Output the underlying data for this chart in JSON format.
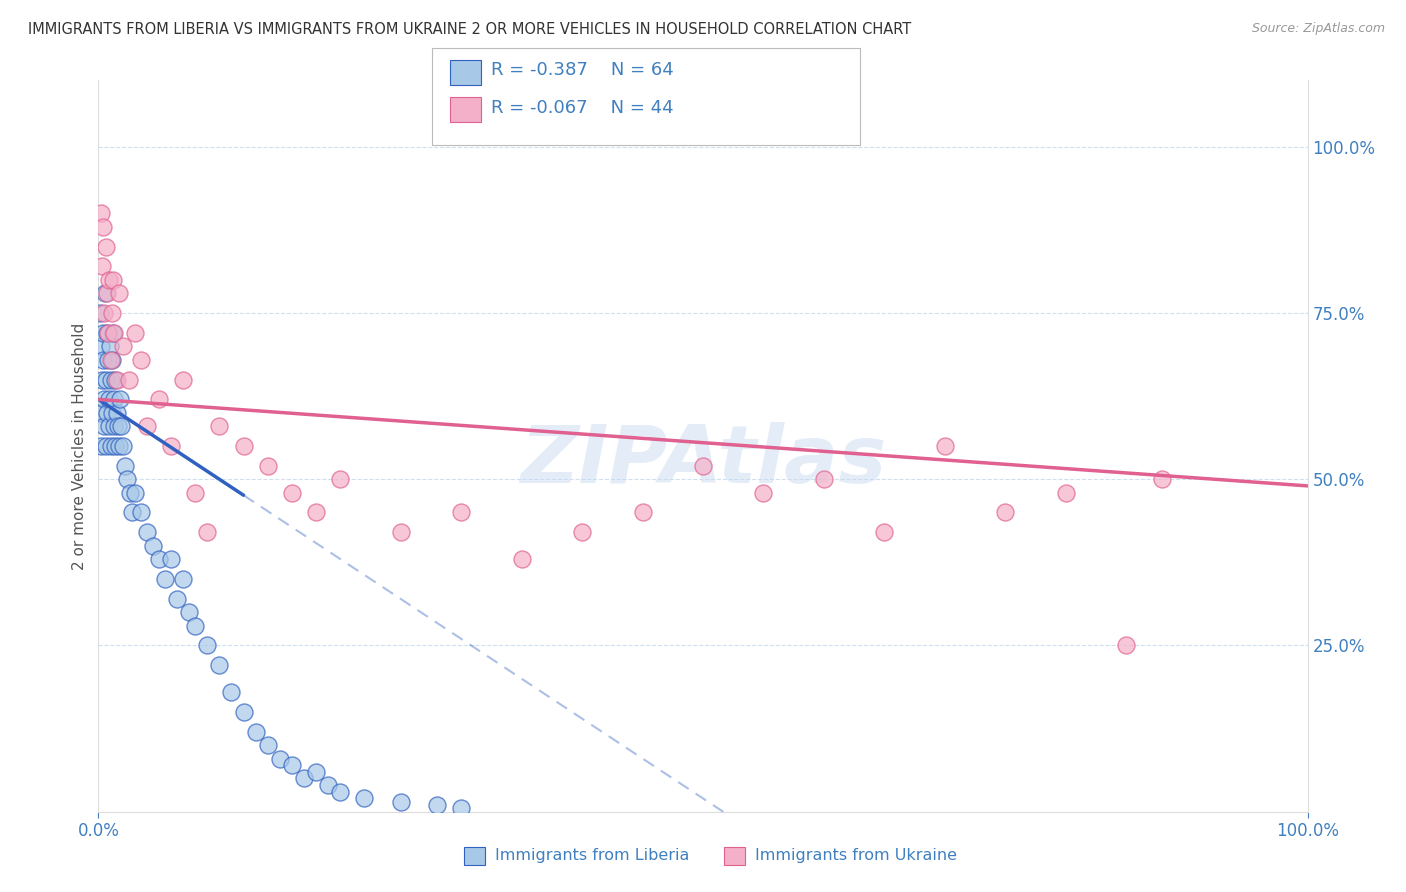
{
  "title": "IMMIGRANTS FROM LIBERIA VS IMMIGRANTS FROM UKRAINE 2 OR MORE VEHICLES IN HOUSEHOLD CORRELATION CHART",
  "source": "Source: ZipAtlas.com",
  "ylabel": "2 or more Vehicles in Household",
  "legend_label1": "Immigrants from Liberia",
  "legend_label2": "Immigrants from Ukraine",
  "legend_r1": "-0.387",
  "legend_n1": "64",
  "legend_r2": "-0.067",
  "legend_n2": "44",
  "color_liberia": "#a8c8e8",
  "color_ukraine": "#f4b0c8",
  "color_line_liberia": "#3060c0",
  "color_line_ukraine": "#e06090",
  "color_title": "#333333",
  "color_source": "#999999",
  "color_axis_label": "#555555",
  "color_tick": "#4080c0",
  "watermark": "ZIPAtlas",
  "background_color": "#ffffff",
  "grid_color": "#d0dff0",
  "liberia_x": [
    0.1,
    0.15,
    0.2,
    0.25,
    0.3,
    0.35,
    0.4,
    0.45,
    0.5,
    0.55,
    0.6,
    0.65,
    0.7,
    0.75,
    0.8,
    0.85,
    0.9,
    0.95,
    1.0,
    1.05,
    1.1,
    1.15,
    1.2,
    1.25,
    1.3,
    1.35,
    1.4,
    1.5,
    1.6,
    1.7,
    1.8,
    1.9,
    2.0,
    2.2,
    2.4,
    2.6,
    2.8,
    3.0,
    3.5,
    4.0,
    4.5,
    5.0,
    5.5,
    6.0,
    6.5,
    7.0,
    7.5,
    8.0,
    9.0,
    10.0,
    11.0,
    12.0,
    13.0,
    14.0,
    15.0,
    16.0,
    17.0,
    18.0,
    19.0,
    20.0,
    22.0,
    25.0,
    28.0,
    30.0
  ],
  "liberia_y": [
    75.0,
    60.0,
    70.0,
    55.0,
    65.0,
    72.0,
    68.0,
    58.0,
    62.0,
    78.0,
    55.0,
    65.0,
    72.0,
    60.0,
    68.0,
    58.0,
    62.0,
    70.0,
    65.0,
    55.0,
    60.0,
    68.0,
    72.0,
    58.0,
    62.0,
    65.0,
    55.0,
    60.0,
    58.0,
    55.0,
    62.0,
    58.0,
    55.0,
    52.0,
    50.0,
    48.0,
    45.0,
    48.0,
    45.0,
    42.0,
    40.0,
    38.0,
    35.0,
    38.0,
    32.0,
    35.0,
    30.0,
    28.0,
    25.0,
    22.0,
    18.0,
    15.0,
    12.0,
    10.0,
    8.0,
    7.0,
    5.0,
    6.0,
    4.0,
    3.0,
    2.0,
    1.5,
    1.0,
    0.5
  ],
  "ukraine_x": [
    0.2,
    0.3,
    0.4,
    0.5,
    0.6,
    0.7,
    0.8,
    0.9,
    1.0,
    1.1,
    1.2,
    1.3,
    1.5,
    1.7,
    2.0,
    2.5,
    3.0,
    3.5,
    4.0,
    5.0,
    6.0,
    7.0,
    8.0,
    9.0,
    10.0,
    12.0,
    14.0,
    16.0,
    18.0,
    20.0,
    25.0,
    30.0,
    35.0,
    40.0,
    45.0,
    50.0,
    55.0,
    60.0,
    65.0,
    70.0,
    75.0,
    80.0,
    85.0,
    88.0
  ],
  "ukraine_y": [
    90.0,
    82.0,
    88.0,
    75.0,
    85.0,
    78.0,
    72.0,
    80.0,
    68.0,
    75.0,
    80.0,
    72.0,
    65.0,
    78.0,
    70.0,
    65.0,
    72.0,
    68.0,
    58.0,
    62.0,
    55.0,
    65.0,
    48.0,
    42.0,
    58.0,
    55.0,
    52.0,
    48.0,
    45.0,
    50.0,
    42.0,
    45.0,
    38.0,
    42.0,
    45.0,
    52.0,
    48.0,
    50.0,
    42.0,
    55.0,
    45.0,
    48.0,
    25.0,
    50.0
  ],
  "xlim": [
    0,
    100
  ],
  "ylim": [
    0,
    110
  ],
  "yticks": [
    25,
    50,
    75,
    100
  ],
  "ytick_labels": [
    "25.0%",
    "50.0%",
    "75.0%",
    "100.0%"
  ],
  "xtick_vals": [
    0,
    100
  ],
  "xtick_labels": [
    "0.0%",
    "100.0%"
  ],
  "liberia_line_xmax": 30,
  "liberia_line_x0_y": 62,
  "liberia_line_xmax_y": 26,
  "ukraine_line_x0_y": 62,
  "ukraine_line_xmax_y": 49
}
